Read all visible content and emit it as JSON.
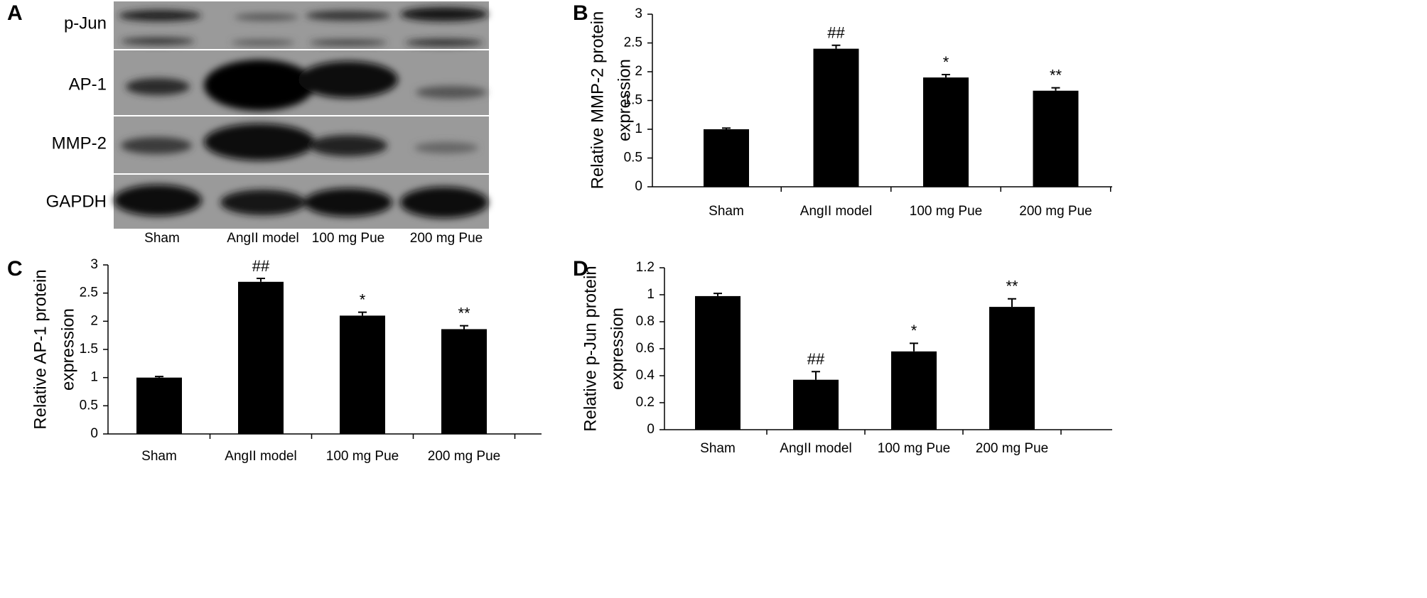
{
  "blot": {
    "panel_label": "A",
    "rows": [
      "p-Jun",
      "AP-1",
      "MMP-2",
      "GAPDH"
    ],
    "lanes": [
      "Sham",
      "AngII model",
      "100 mg Pue",
      "200 mg Pue"
    ]
  },
  "chart_data": [
    {
      "type": "bar",
      "panel_label": "B",
      "y_label": [
        "Relative MMP-2 protein",
        "expression"
      ],
      "categories": [
        "Sham",
        "AngII model",
        "100 mg Pue",
        "200 mg Pue"
      ],
      "values": [
        1.0,
        2.4,
        1.9,
        1.67
      ],
      "errors": [
        0.02,
        0.06,
        0.05,
        0.05
      ],
      "annotations": [
        null,
        "##",
        "*",
        "**"
      ],
      "color": "#000000",
      "ylim": [
        0,
        3
      ],
      "yticks": [
        0,
        0.5,
        1,
        1.5,
        2,
        2.5,
        3
      ]
    },
    {
      "type": "bar",
      "panel_label": "C",
      "y_label": [
        "Relative AP-1 protein",
        "expression"
      ],
      "categories": [
        "Sham",
        "AngII model",
        "100 mg Pue",
        "200 mg Pue"
      ],
      "values": [
        1.0,
        2.7,
        2.1,
        1.86
      ],
      "errors": [
        0.02,
        0.06,
        0.06,
        0.06
      ],
      "annotations": [
        null,
        "##",
        "*",
        "**"
      ],
      "color": "#000000",
      "ylim": [
        0,
        3
      ],
      "yticks": [
        0,
        0.5,
        1,
        1.5,
        2,
        2.5,
        3
      ]
    },
    {
      "type": "bar",
      "panel_label": "D",
      "y_label": [
        "Relative p-Jun protein",
        "expression"
      ],
      "categories": [
        "Sham",
        "AngII model",
        "100 mg Pue",
        "200 mg Pue"
      ],
      "values": [
        0.99,
        0.37,
        0.58,
        0.91
      ],
      "errors": [
        0.02,
        0.06,
        0.06,
        0.06
      ],
      "annotations": [
        null,
        "##",
        "*",
        "**"
      ],
      "color": "#000000",
      "ylim": [
        0,
        1.2
      ],
      "yticks": [
        0,
        0.2,
        0.4,
        0.6,
        0.8,
        1,
        1.2
      ]
    }
  ]
}
